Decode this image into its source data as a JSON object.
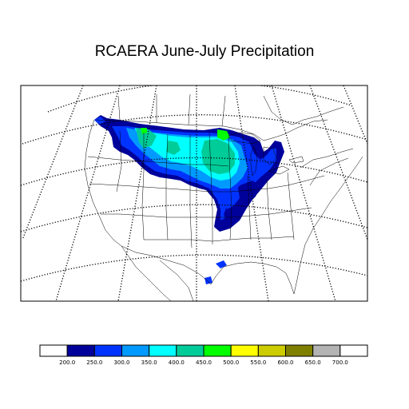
{
  "title": "RCAERA June-July Precipitation",
  "legend": {
    "colors": [
      "#ffffff",
      "#00009a",
      "#0033ff",
      "#0099ff",
      "#00ffff",
      "#00cc99",
      "#00ff00",
      "#ffff00",
      "#cccc00",
      "#808000",
      "#b3b3b3",
      "#ffffff"
    ],
    "tick_labels": [
      "200.0",
      "250.0",
      "300.0",
      "350.0",
      "400.0",
      "450.0",
      "500.0",
      "550.0",
      "600.0",
      "650.0",
      "700.0"
    ]
  },
  "precip_colors": {
    "c250": "#00009a",
    "c300": "#0033ff",
    "c350": "#0099ff",
    "c400": "#00ffff",
    "c450": "#00cc99",
    "c500": "#00ff00"
  }
}
